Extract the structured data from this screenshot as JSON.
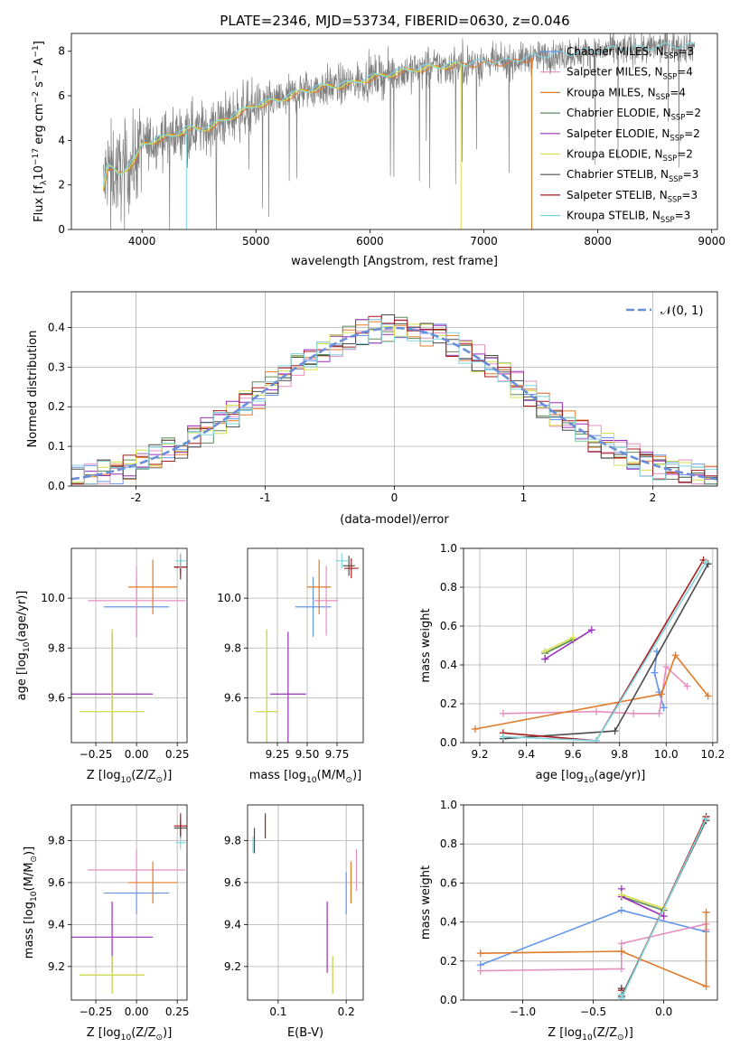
{
  "figure": {
    "title": "PLATE=2346, MJD=53734, FIBERID=0630, z=0.046"
  },
  "colors": {
    "Chabrier MILES": "#6495ed",
    "Salpeter MILES": "#e58fbf",
    "Kroupa MILES": "#e07b2a",
    "Chabrier ELODIE": "#5c8a5c",
    "Salpeter ELODIE": "#9a2fb8",
    "Kroupa ELODIE": "#d6e04a",
    "Chabrier STELIB": "#4d4d4d",
    "Salpeter STELIB": "#a81c1c",
    "Kroupa STELIB": "#7fd6e0",
    "data": "#808080"
  },
  "chart_data": [
    {
      "id": "spectrum",
      "type": "line",
      "title": "PLATE=2346, MJD=53734, FIBERID=0630, z=0.046",
      "xlabel": "wavelength [Angstrom, rest frame]",
      "ylabel_main": "Flux [f",
      "ylabel_sub1": "λ",
      "ylabel_mid": "10",
      "ylabel_sup1": "−17",
      "ylabel_tail": " erg cm",
      "ylabel_sup2": "−2",
      "ylabel_tail2": " s",
      "ylabel_sup3": "−1",
      "ylabel_tail3": " A",
      "ylabel_sup4": "−1",
      "ylabel_end": "]",
      "xlim": [
        3380,
        9050
      ],
      "ylim": [
        0,
        8.8
      ],
      "xticks": [
        4000,
        5000,
        6000,
        7000,
        8000,
        9000
      ],
      "yticks": [
        0,
        2,
        4,
        6,
        8
      ],
      "legend_position": "upper-right",
      "legend": [
        {
          "name": "Chabrier MILES, N",
          "sub": "SSP",
          "tail": "=3",
          "color": "Chabrier MILES"
        },
        {
          "name": "Salpeter MILES, N",
          "sub": "SSP",
          "tail": "=4",
          "color": "Salpeter MILES"
        },
        {
          "name": "Kroupa MILES, N",
          "sub": "SSP",
          "tail": "=4",
          "color": "Kroupa MILES"
        },
        {
          "name": "Chabrier ELODIE, N",
          "sub": "SSP",
          "tail": "=2",
          "color": "Chabrier ELODIE"
        },
        {
          "name": "Salpeter ELODIE, N",
          "sub": "SSP",
          "tail": "=2",
          "color": "Salpeter ELODIE"
        },
        {
          "name": "Kroupa ELODIE, N",
          "sub": "SSP",
          "tail": "=2",
          "color": "Kroupa ELODIE"
        },
        {
          "name": "Chabrier STELIB, N",
          "sub": "SSP",
          "tail": "=3",
          "color": "Chabrier STELIB"
        },
        {
          "name": "Salpeter STELIB, N",
          "sub": "SSP",
          "tail": "=3",
          "color": "Salpeter STELIB"
        },
        {
          "name": "Kroupa STELIB, N",
          "sub": "SSP",
          "tail": "=3",
          "color": "Kroupa STELIB"
        }
      ],
      "data_continuum": {
        "x": [
          3660,
          3700,
          3800,
          3900,
          3950,
          4000,
          4100,
          4200,
          4300,
          4400,
          4500,
          4600,
          4800,
          5000,
          5200,
          5400,
          5600,
          5800,
          6000,
          6200,
          6400,
          6600,
          6800,
          7000,
          7200,
          7400,
          7600,
          7800,
          8000,
          8200,
          8400,
          8600,
          8800
        ],
        "y": [
          1.9,
          2.8,
          2.5,
          2.9,
          3.2,
          3.8,
          4.0,
          4.1,
          4.3,
          4.5,
          4.5,
          4.6,
          5.1,
          5.6,
          5.8,
          6.2,
          6.4,
          6.5,
          6.8,
          7.0,
          7.2,
          7.3,
          7.4,
          7.5,
          7.5,
          7.7,
          7.8,
          7.9,
          8.0,
          8.1,
          8.1,
          8.2,
          8.2
        ]
      },
      "model_tracks": [
        {
          "color": "Kroupa MILES",
          "x_range": [
            3660,
            7420
          ],
          "dropout_x": [
            7420,
            7440
          ]
        },
        {
          "color": "Kroupa ELODIE",
          "x_range": [
            3660,
            6800
          ],
          "dropout_x": [
            6800,
            6810
          ]
        },
        {
          "color": "Kroupa STELIB",
          "x_range": [
            3660,
            8850
          ],
          "dropout_x": [
            4390,
            4400
          ]
        }
      ]
    },
    {
      "id": "residuals",
      "type": "histogram",
      "xlabel": "(data-model)/error",
      "ylabel": "Normed distribution",
      "xlim": [
        -2.5,
        2.5
      ],
      "ylim": [
        0,
        0.49
      ],
      "xticks": [
        -2,
        -1,
        0,
        1,
        2
      ],
      "yticks": [
        0,
        0.1,
        0.2,
        0.3,
        0.4
      ],
      "grid": true,
      "legend_position": "upper-right",
      "reference_label": "𝒩(0, 1)",
      "reference_color": "#6a8fd8",
      "bin_width": 0.1,
      "bin_start": -2.5
    },
    {
      "id": "age-vs-Z",
      "type": "scatter",
      "xlabel_main": "Z [log",
      "xlabel_sub": "10",
      "xlabel_tail": "(Z/Z",
      "xlabel_sub2": "⊙",
      "xlabel_end": ")]",
      "ylabel_main": "age  [log",
      "ylabel_sub": "10",
      "ylabel_tail": "(age/yr)]",
      "xlim": [
        -0.4,
        0.31
      ],
      "ylim": [
        9.42,
        10.2
      ],
      "xticks": [
        -0.25,
        0.0,
        0.25
      ],
      "xticklabels": [
        "−0.25",
        "0.00",
        "0.25"
      ],
      "yticks": [
        9.6,
        9.8,
        10.0
      ],
      "yticklabels": [
        "9.6",
        "9.8",
        "10.0"
      ],
      "grid": true,
      "points": [
        {
          "color": "Chabrier MILES",
          "x": 0.0,
          "y": 9.965,
          "xerr": 0.2,
          "yerr": 0.12
        },
        {
          "color": "Salpeter MILES",
          "x": 0.0,
          "y": 9.99,
          "xerr": 0.3,
          "yerr": 0.14
        },
        {
          "color": "Kroupa MILES",
          "x": 0.1,
          "y": 10.045,
          "xerr": 0.15,
          "yerr": 0.11
        },
        {
          "color": "Chabrier ELODIE",
          "x": -0.15,
          "y": 9.545,
          "xerr": 0.2,
          "yerr": 0.33
        },
        {
          "color": "Salpeter ELODIE",
          "x": -0.15,
          "y": 9.615,
          "xerr": 0.25,
          "yerr": 0.25
        },
        {
          "color": "Kroupa ELODIE",
          "x": -0.15,
          "y": 9.545,
          "xerr": 0.2,
          "yerr": 0.33
        },
        {
          "color": "Chabrier STELIB",
          "x": 0.27,
          "y": 10.125,
          "xerr": 0.04,
          "yerr": 0.03
        },
        {
          "color": "Salpeter STELIB",
          "x": 0.27,
          "y": 10.125,
          "xerr": 0.04,
          "yerr": 0.05
        },
        {
          "color": "Kroupa STELIB",
          "x": 0.27,
          "y": 10.15,
          "xerr": 0.03,
          "yerr": 0.03
        }
      ]
    },
    {
      "id": "age-vs-mass",
      "type": "scatter",
      "xlabel_main": "mass [log",
      "xlabel_sub": "10",
      "xlabel_tail": "(M/M",
      "xlabel_sub2": "⊙",
      "xlabel_end": ")]",
      "xlim": [
        9.0,
        9.97
      ],
      "ylim": [
        9.42,
        10.2
      ],
      "xticks": [
        9.25,
        9.5,
        9.75
      ],
      "xticklabels": [
        "9.25",
        "9.50",
        "9.75"
      ],
      "yticks": [
        9.6,
        9.8,
        10.0
      ],
      "yticklabels": [
        "9.6",
        "9.8",
        "10.0"
      ],
      "grid": true,
      "points": [
        {
          "color": "Chabrier MILES",
          "x": 9.55,
          "y": 9.965,
          "xerr": 0.15,
          "yerr": 0.12
        },
        {
          "color": "Salpeter MILES",
          "x": 9.66,
          "y": 9.99,
          "xerr": 0.1,
          "yerr": 0.14
        },
        {
          "color": "Kroupa MILES",
          "x": 9.6,
          "y": 10.045,
          "xerr": 0.1,
          "yerr": 0.11
        },
        {
          "color": "Chabrier ELODIE",
          "x": 9.16,
          "y": 9.545,
          "xerr": 0.09,
          "yerr": 0.33
        },
        {
          "color": "Salpeter ELODIE",
          "x": 9.34,
          "y": 9.615,
          "xerr": 0.15,
          "yerr": 0.25
        },
        {
          "color": "Kroupa ELODIE",
          "x": 9.16,
          "y": 9.545,
          "xerr": 0.09,
          "yerr": 0.33
        },
        {
          "color": "Chabrier STELIB",
          "x": 9.85,
          "y": 10.13,
          "xerr": 0.05,
          "yerr": 0.04
        },
        {
          "color": "Salpeter STELIB",
          "x": 9.87,
          "y": 10.12,
          "xerr": 0.06,
          "yerr": 0.04
        },
        {
          "color": "Kroupa STELIB",
          "x": 9.79,
          "y": 10.15,
          "xerr": 0.05,
          "yerr": 0.03
        }
      ]
    },
    {
      "id": "weight-vs-age",
      "type": "line",
      "xlabel_main": "age  [log",
      "xlabel_sub": "10",
      "xlabel_tail": "(age/yr)]",
      "ylabel": "mass weight",
      "xlim": [
        9.13,
        10.22
      ],
      "ylim": [
        0,
        1.0
      ],
      "xticks": [
        9.2,
        9.4,
        9.6,
        9.8,
        10.0,
        10.2
      ],
      "xticklabels": [
        "9.2",
        "9.4",
        "9.6",
        "9.8",
        "10.0",
        "10.2"
      ],
      "yticks": [
        0,
        0.2,
        0.4,
        0.6,
        0.8,
        1.0
      ],
      "yticklabels": [
        "0.0",
        "0.2",
        "0.4",
        "0.6",
        "0.8",
        "1.0"
      ],
      "grid": true,
      "series": [
        {
          "color": "Chabrier MILES",
          "x": [
            9.96,
            9.95,
            9.97,
            9.99
          ],
          "y": [
            0.47,
            0.36,
            0.26,
            0.18
          ]
        },
        {
          "color": "Salpeter MILES",
          "x": [
            9.3,
            9.7,
            9.86,
            9.97,
            10.0,
            10.09
          ],
          "y": [
            0.15,
            0.16,
            0.15,
            0.15,
            0.39,
            0.29
          ]
        },
        {
          "color": "Kroupa MILES",
          "x": [
            9.18,
            9.98,
            10.04,
            10.18
          ],
          "y": [
            0.07,
            0.25,
            0.45,
            0.24
          ]
        },
        {
          "color": "Chabrier ELODIE",
          "x": [
            9.48,
            9.6
          ],
          "y": [
            0.46,
            0.53
          ]
        },
        {
          "color": "Salpeter ELODIE",
          "x": [
            9.48,
            9.68
          ],
          "y": [
            0.43,
            0.58
          ]
        },
        {
          "color": "Kroupa ELODIE",
          "x": [
            9.48,
            9.6
          ],
          "y": [
            0.47,
            0.54
          ]
        },
        {
          "color": "Chabrier STELIB",
          "x": [
            9.3,
            9.78,
            10.18
          ],
          "y": [
            0.02,
            0.06,
            0.92
          ]
        },
        {
          "color": "Salpeter STELIB",
          "x": [
            9.3,
            9.7,
            10.16
          ],
          "y": [
            0.05,
            0.01,
            0.94
          ]
        },
        {
          "color": "Kroupa STELIB",
          "x": [
            9.3,
            9.7,
            10.17
          ],
          "y": [
            0.03,
            0.01,
            0.93
          ]
        }
      ]
    },
    {
      "id": "mass-vs-Z",
      "type": "scatter",
      "xlabel_main": "Z [log",
      "xlabel_sub": "10",
      "xlabel_tail": "(Z/Z",
      "xlabel_sub2": "⊙",
      "xlabel_end": ")]",
      "ylabel_main": "mass [log",
      "ylabel_sub": "10",
      "ylabel_tail": "(M/M",
      "ylabel_sub2": "⊙",
      "ylabel_end": ")]",
      "xlim": [
        -0.4,
        0.31
      ],
      "ylim": [
        9.04,
        9.97
      ],
      "xticks": [
        -0.25,
        0.0,
        0.25
      ],
      "xticklabels": [
        "−0.25",
        "0.00",
        "0.25"
      ],
      "yticks": [
        9.2,
        9.4,
        9.6,
        9.8
      ],
      "yticklabels": [
        "9.2",
        "9.4",
        "9.6",
        "9.8"
      ],
      "grid": true,
      "points": [
        {
          "color": "Chabrier MILES",
          "x": 0.0,
          "y": 9.55,
          "xerr": 0.2,
          "yerr": 0.1
        },
        {
          "color": "Salpeter MILES",
          "x": 0.0,
          "y": 9.66,
          "xerr": 0.3,
          "yerr": 0.1
        },
        {
          "color": "Kroupa MILES",
          "x": 0.1,
          "y": 9.6,
          "xerr": 0.15,
          "yerr": 0.1
        },
        {
          "color": "Chabrier ELODIE",
          "x": -0.15,
          "y": 9.16,
          "xerr": 0.2,
          "yerr": 0.09
        },
        {
          "color": "Salpeter ELODIE",
          "x": -0.15,
          "y": 9.34,
          "xerr": 0.25,
          "yerr": 0.17
        },
        {
          "color": "Kroupa ELODIE",
          "x": -0.15,
          "y": 9.16,
          "xerr": 0.2,
          "yerr": 0.09
        },
        {
          "color": "Chabrier STELIB",
          "x": 0.27,
          "y": 9.86,
          "xerr": 0.04,
          "yerr": 0.04
        },
        {
          "color": "Salpeter STELIB",
          "x": 0.27,
          "y": 9.87,
          "xerr": 0.04,
          "yerr": 0.06
        },
        {
          "color": "Kroupa STELIB",
          "x": 0.27,
          "y": 9.79,
          "xerr": 0.03,
          "yerr": 0.03
        }
      ]
    },
    {
      "id": "mass-vs-EBV",
      "type": "scatter",
      "xlabel": "E(B-V)",
      "xlim": [
        0.055,
        0.225
      ],
      "ylim": [
        9.04,
        9.97
      ],
      "xticks": [
        0.1,
        0.2
      ],
      "xticklabels": [
        "0.1",
        "0.2"
      ],
      "yticks": [
        9.2,
        9.4,
        9.6,
        9.8
      ],
      "yticklabels": [
        "9.2",
        "9.4",
        "9.6",
        "9.8"
      ],
      "grid": true,
      "points": [
        {
          "color": "Chabrier MILES",
          "x": 0.2,
          "y": 9.55,
          "yerr": 0.1
        },
        {
          "color": "Salpeter MILES",
          "x": 0.215,
          "y": 9.66,
          "yerr": 0.1
        },
        {
          "color": "Kroupa MILES",
          "x": 0.207,
          "y": 9.6,
          "yerr": 0.1
        },
        {
          "color": "Chabrier ELODIE",
          "x": 0.18,
          "y": 9.16,
          "yerr": 0.09
        },
        {
          "color": "Salpeter ELODIE",
          "x": 0.172,
          "y": 9.34,
          "yerr": 0.17
        },
        {
          "color": "Kroupa ELODIE",
          "x": 0.18,
          "y": 9.16,
          "yerr": 0.09
        },
        {
          "color": "Chabrier STELIB",
          "x": 0.065,
          "y": 9.8,
          "yerr": 0.06
        },
        {
          "color": "Salpeter STELIB",
          "x": 0.081,
          "y": 9.87,
          "yerr": 0.06
        },
        {
          "color": "Kroupa STELIB",
          "x": 0.063,
          "y": 9.78,
          "yerr": 0.04
        }
      ]
    },
    {
      "id": "weight-vs-Z",
      "type": "line",
      "xlabel_main": "Z [log",
      "xlabel_sub": "10",
      "xlabel_tail": "(Z/Z",
      "xlabel_sub2": "⊙",
      "xlabel_end": ")]",
      "ylabel": "mass weight",
      "xlim": [
        -1.42,
        0.38
      ],
      "ylim": [
        0,
        1.0
      ],
      "xticks": [
        -1.0,
        -0.5,
        0.0
      ],
      "xticklabels": [
        "−1.0",
        "−0.5",
        "0.0"
      ],
      "yticks": [
        0,
        0.2,
        0.4,
        0.6,
        0.8,
        1.0
      ],
      "yticklabels": [
        "0.0",
        "0.2",
        "0.4",
        "0.6",
        "0.8",
        "1.0"
      ],
      "grid": true,
      "series": [
        {
          "color": "Chabrier MILES",
          "x": [
            -1.3,
            -0.3,
            0.3
          ],
          "y": [
            0.18,
            0.46,
            0.35
          ]
        },
        {
          "color": "Salpeter MILES",
          "x": [
            -1.3,
            -0.3,
            -0.3,
            0.3,
            0.3
          ],
          "y": [
            0.15,
            0.16,
            0.29,
            0.39,
            0.36
          ]
        },
        {
          "color": "Kroupa MILES",
          "x": [
            -1.3,
            -0.3,
            0.3,
            0.3
          ],
          "y": [
            0.24,
            0.25,
            0.07,
            0.45
          ]
        },
        {
          "color": "Chabrier ELODIE",
          "x": [
            -0.3,
            0.0
          ],
          "y": [
            0.53,
            0.46
          ]
        },
        {
          "color": "Salpeter ELODIE",
          "x": [
            -0.3,
            -0.3,
            0.0
          ],
          "y": [
            0.57,
            0.53,
            0.43
          ]
        },
        {
          "color": "Kroupa ELODIE",
          "x": [
            -0.3,
            0.0
          ],
          "y": [
            0.54,
            0.47
          ]
        },
        {
          "color": "Chabrier STELIB",
          "x": [
            -0.3,
            -0.3,
            0.3
          ],
          "y": [
            0.06,
            0.02,
            0.92
          ]
        },
        {
          "color": "Salpeter STELIB",
          "x": [
            -0.3,
            -0.3,
            0.3
          ],
          "y": [
            0.05,
            0.01,
            0.94
          ]
        },
        {
          "color": "Kroupa STELIB",
          "x": [
            -0.3,
            -0.3,
            0.3
          ],
          "y": [
            0.03,
            0.01,
            0.93
          ]
        }
      ]
    }
  ]
}
